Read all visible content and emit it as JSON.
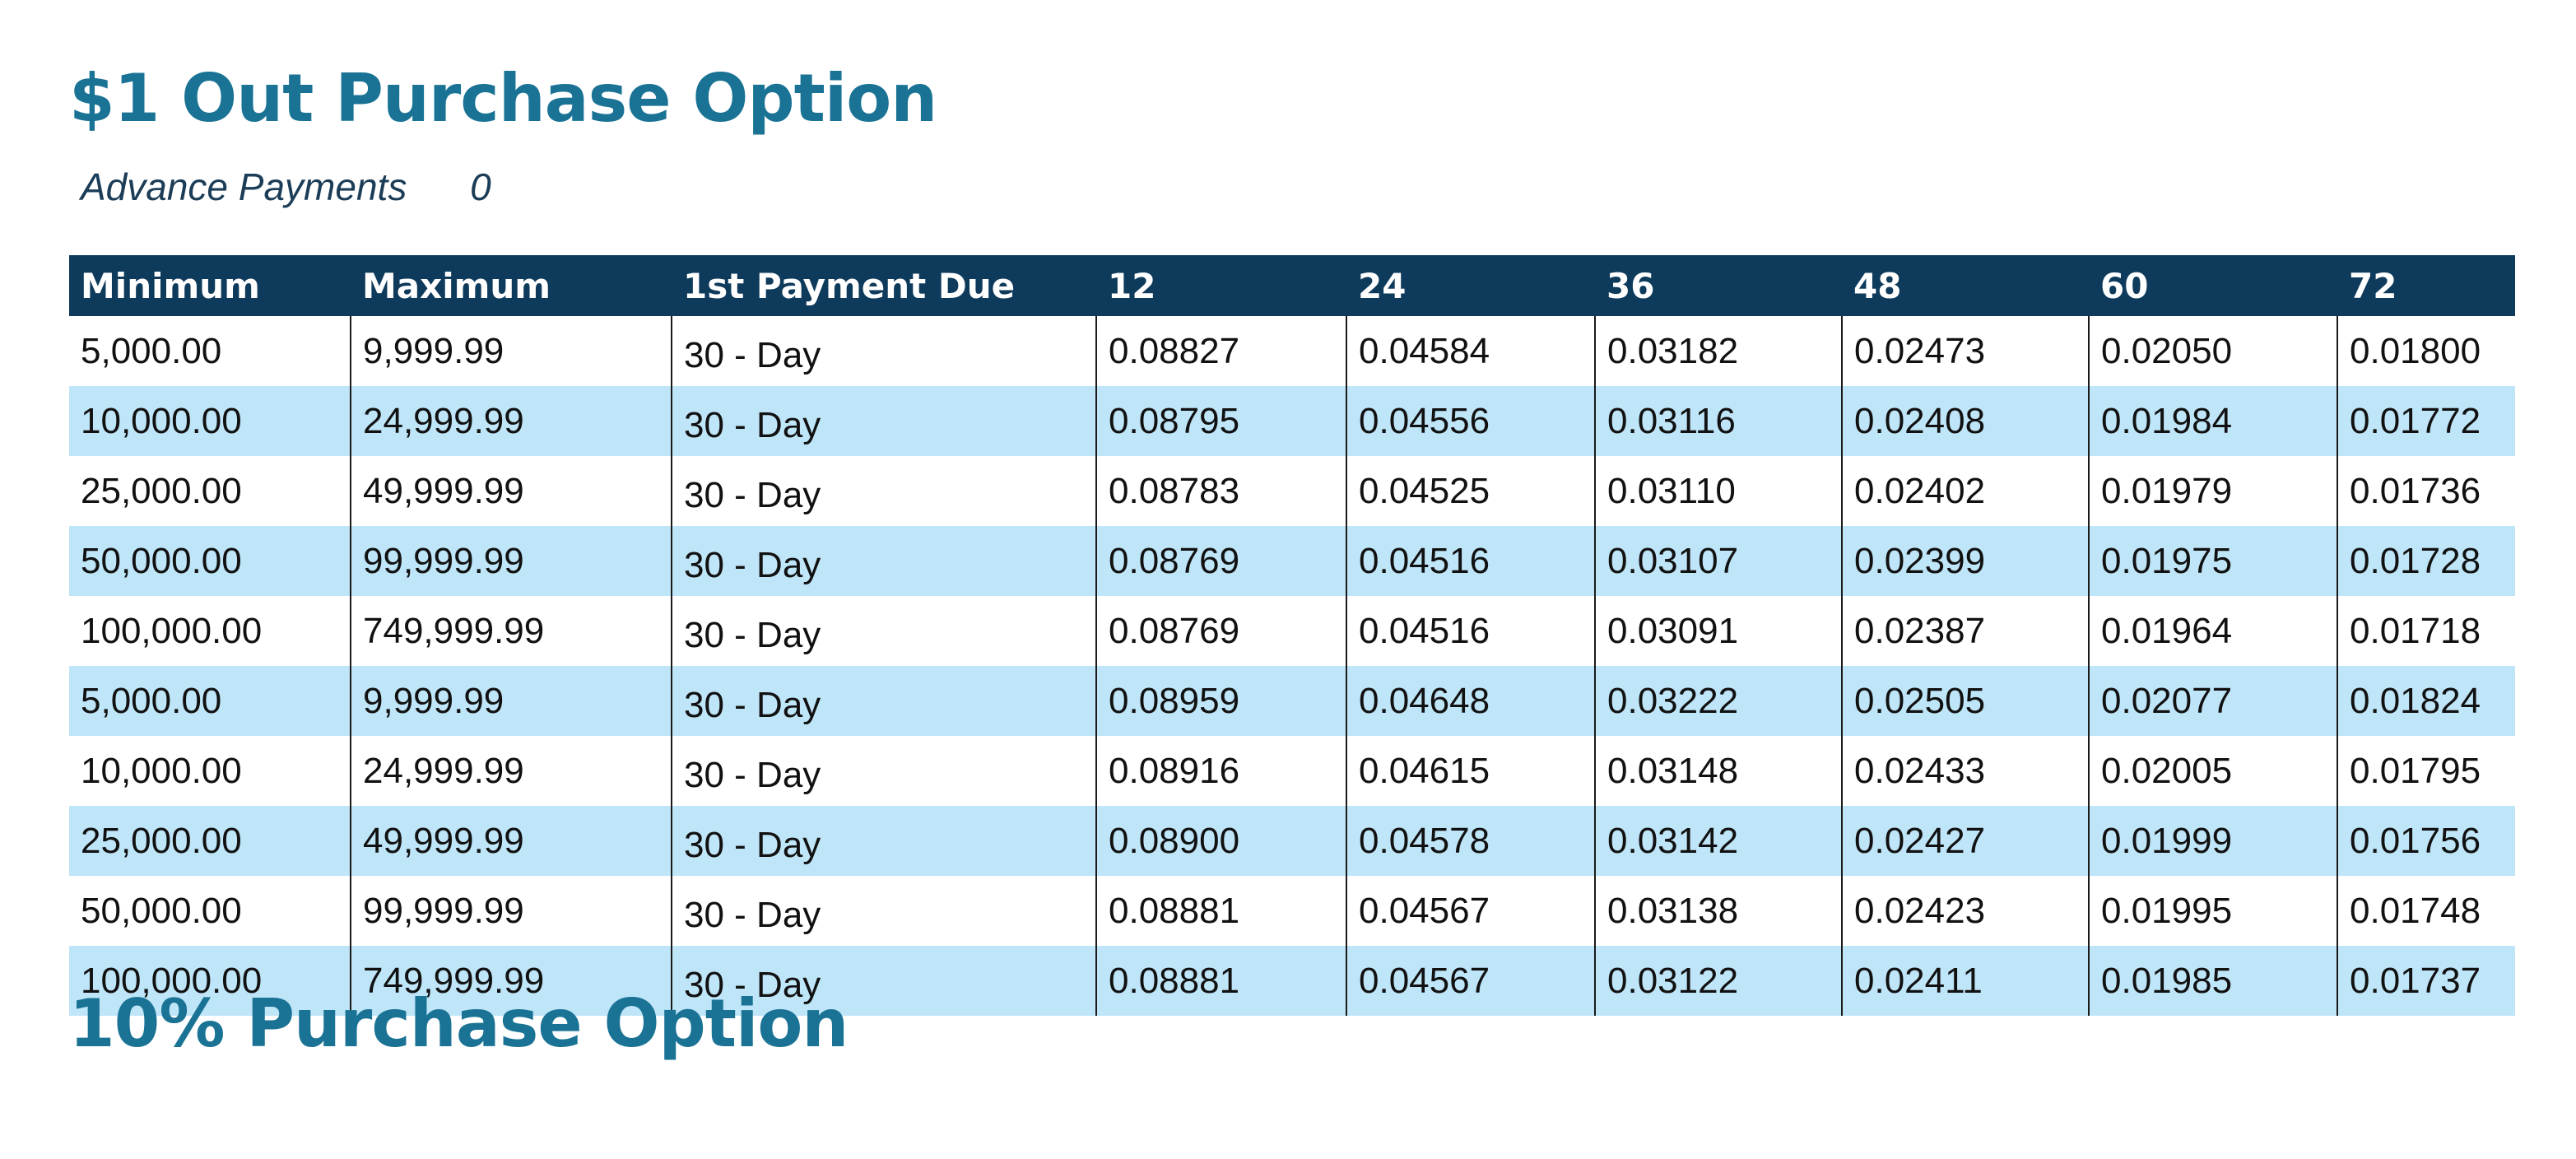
{
  "section1": {
    "title": "$1 Out Purchase Option"
  },
  "advance": {
    "label": "Advance Payments",
    "value": "0"
  },
  "table": {
    "headers": [
      "Minimum",
      "Maximum",
      "1st Payment Due",
      "12",
      "24",
      "36",
      "48",
      "60",
      "72"
    ],
    "rows": [
      [
        "5,000.00",
        "9,999.99",
        "30 - Day",
        "0.08827",
        "0.04584",
        "0.03182",
        "0.02473",
        "0.02050",
        "0.01800"
      ],
      [
        "10,000.00",
        "24,999.99",
        "30 - Day",
        "0.08795",
        "0.04556",
        "0.03116",
        "0.02408",
        "0.01984",
        "0.01772"
      ],
      [
        "25,000.00",
        "49,999.99",
        "30 - Day",
        "0.08783",
        "0.04525",
        "0.03110",
        "0.02402",
        "0.01979",
        "0.01736"
      ],
      [
        "50,000.00",
        "99,999.99",
        "30 - Day",
        "0.08769",
        "0.04516",
        "0.03107",
        "0.02399",
        "0.01975",
        "0.01728"
      ],
      [
        "100,000.00",
        "749,999.99",
        "30 - Day",
        "0.08769",
        "0.04516",
        "0.03091",
        "0.02387",
        "0.01964",
        "0.01718"
      ],
      [
        "5,000.00",
        "9,999.99",
        "30 - Day",
        "0.08959",
        "0.04648",
        "0.03222",
        "0.02505",
        "0.02077",
        "0.01824"
      ],
      [
        "10,000.00",
        "24,999.99",
        "30 - Day",
        "0.08916",
        "0.04615",
        "0.03148",
        "0.02433",
        "0.02005",
        "0.01795"
      ],
      [
        "25,000.00",
        "49,999.99",
        "30 - Day",
        "0.08900",
        "0.04578",
        "0.03142",
        "0.02427",
        "0.01999",
        "0.01756"
      ],
      [
        "50,000.00",
        "99,999.99",
        "30 - Day",
        "0.08881",
        "0.04567",
        "0.03138",
        "0.02423",
        "0.01995",
        "0.01748"
      ],
      [
        "100,000.00",
        "749,999.99",
        "30 - Day",
        "0.08881",
        "0.04567",
        "0.03122",
        "0.02411",
        "0.01985",
        "0.01737"
      ]
    ]
  },
  "section2": {
    "title": "10% Purchase Option"
  },
  "colors": {
    "title": "#1a7395",
    "header_bg": "#0e3a5b",
    "stripe": "#bfe5f8",
    "advance_text": "#1c3d57"
  }
}
